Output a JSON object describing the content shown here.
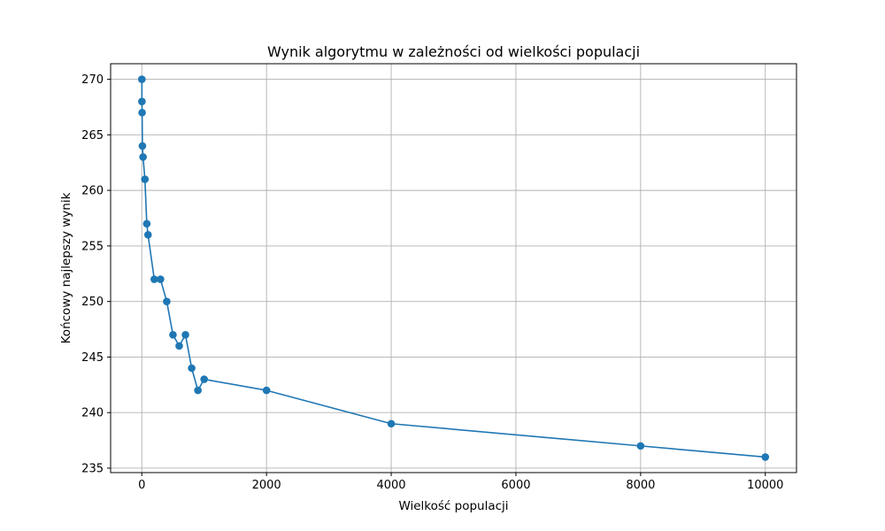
{
  "chart_data": {
    "type": "line",
    "title": "Wynik algorytmu w zależności od wielkości populacji",
    "xlabel": "Wielkość populacji",
    "ylabel": "Końcowy najlepszy wynik",
    "xlim": [
      -500,
      10500
    ],
    "ylim": [
      234.6,
      271.4
    ],
    "xticks": [
      0,
      2000,
      4000,
      6000,
      8000,
      10000
    ],
    "yticks": [
      235,
      240,
      245,
      250,
      255,
      260,
      265,
      270
    ],
    "grid": true,
    "marker": "circle",
    "series": [
      {
        "color": "#1f77b4",
        "x": [
          1,
          2,
          5,
          10,
          20,
          50,
          80,
          100,
          200,
          300,
          400,
          500,
          600,
          700,
          800,
          900,
          1000,
          2000,
          4000,
          8000,
          10000
        ],
        "y": [
          270,
          268,
          267,
          264,
          263,
          261,
          257,
          256,
          252,
          252,
          250,
          247,
          246,
          247,
          244,
          242,
          243,
          242,
          239,
          237,
          236
        ]
      }
    ]
  }
}
